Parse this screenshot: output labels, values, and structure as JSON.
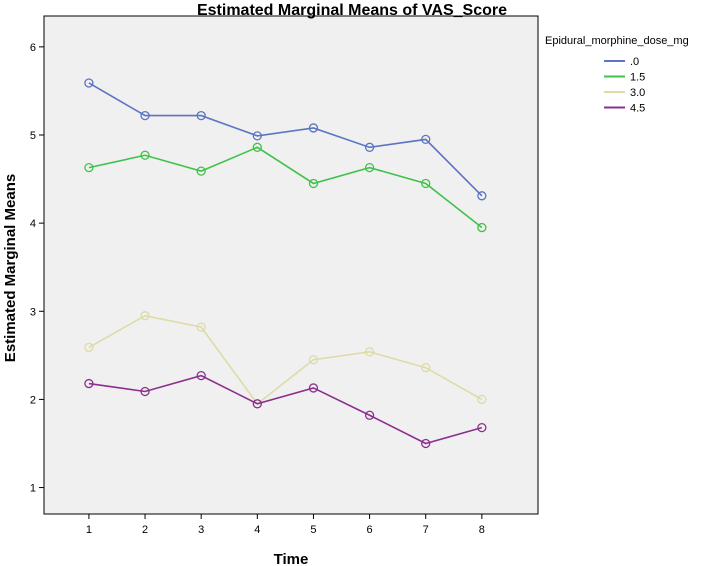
{
  "chart_data": {
    "type": "line",
    "title": "Estimated Marginal Means of VAS_Score",
    "xlabel": "Time",
    "ylabel": "Estimated Marginal Means",
    "x": [
      1,
      2,
      3,
      4,
      5,
      6,
      7,
      8
    ],
    "xticks": [
      "1",
      "2",
      "3",
      "4",
      "5",
      "6",
      "7",
      "8"
    ],
    "xlim": [
      0.2,
      9.0
    ],
    "ylim": [
      0.7,
      6.35
    ],
    "yticks": [
      1,
      2,
      3,
      4,
      5,
      6
    ],
    "grid": false,
    "legend_title": "Epidural_morphine_dose_mg",
    "legend_position": "top-right outside",
    "series": [
      {
        "name": ".0",
        "color": "#5b74c4",
        "values": [
          5.59,
          5.22,
          5.22,
          4.99,
          5.08,
          4.86,
          4.95,
          4.31
        ]
      },
      {
        "name": "1.5",
        "color": "#3fc24a",
        "values": [
          4.63,
          4.77,
          4.59,
          4.86,
          4.45,
          4.63,
          4.45,
          3.95
        ]
      },
      {
        "name": "3.0",
        "color": "#dedba8",
        "values": [
          2.59,
          2.95,
          2.82,
          1.95,
          2.45,
          2.54,
          2.36,
          2.0
        ]
      },
      {
        "name": "4.5",
        "color": "#8b2f8e",
        "values": [
          2.18,
          2.09,
          2.27,
          1.95,
          2.13,
          1.82,
          1.5,
          1.68
        ]
      }
    ]
  }
}
